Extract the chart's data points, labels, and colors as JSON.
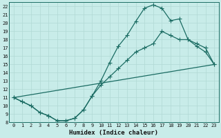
{
  "xlabel": "Humidex (Indice chaleur)",
  "bg_color": "#c8ece9",
  "line_color": "#1a6b62",
  "grid_color": "#b0d8d4",
  "xlim": [
    -0.5,
    23.5
  ],
  "ylim": [
    8,
    22.5
  ],
  "xticks": [
    0,
    1,
    2,
    3,
    4,
    5,
    6,
    7,
    8,
    9,
    10,
    11,
    12,
    13,
    14,
    15,
    16,
    17,
    18,
    19,
    20,
    21,
    22,
    23
  ],
  "yticks": [
    8,
    9,
    10,
    11,
    12,
    13,
    14,
    15,
    16,
    17,
    18,
    19,
    20,
    21,
    22
  ],
  "line1_x": [
    0,
    1,
    2,
    3,
    4,
    5,
    6,
    7,
    8,
    9,
    10,
    11,
    12,
    13,
    14,
    15,
    16,
    17,
    18,
    19,
    20,
    21,
    22,
    23
  ],
  "line1_y": [
    11,
    10.5,
    10.0,
    9.2,
    8.8,
    8.2,
    8.2,
    8.5,
    9.5,
    11.2,
    13.0,
    15.2,
    17.2,
    18.5,
    20.2,
    21.8,
    22.2,
    21.8,
    20.3,
    20.5,
    18.0,
    17.2,
    16.5,
    15.0
  ],
  "line2_x": [
    0,
    1,
    2,
    3,
    4,
    5,
    6,
    7,
    8,
    9,
    10,
    11,
    12,
    13,
    14,
    15,
    16,
    17,
    18,
    19,
    20,
    21,
    22,
    23
  ],
  "line2_y": [
    11,
    10.5,
    10.0,
    9.2,
    8.8,
    8.2,
    8.2,
    8.5,
    9.5,
    11.2,
    12.5,
    13.5,
    14.5,
    15.5,
    16.5,
    17.0,
    17.5,
    19.0,
    18.5,
    18.0,
    18.0,
    17.5,
    17.0,
    15.0
  ],
  "line3_x": [
    0,
    23
  ],
  "line3_y": [
    11,
    15.0
  ],
  "marker": "+",
  "marker_size": 4,
  "marker_lw": 0.8,
  "linewidth": 0.9,
  "tick_fontsize": 5.0,
  "xlabel_fontsize": 6.5
}
